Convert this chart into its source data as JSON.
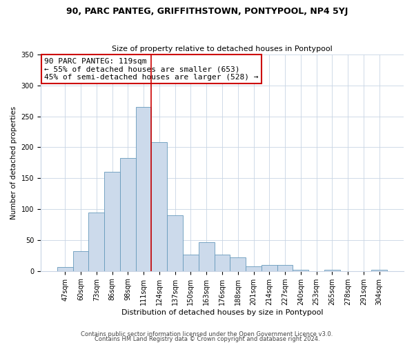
{
  "title": "90, PARC PANTEG, GRIFFITHSTOWN, PONTYPOOL, NP4 5YJ",
  "subtitle": "Size of property relative to detached houses in Pontypool",
  "xlabel": "Distribution of detached houses by size in Pontypool",
  "ylabel": "Number of detached properties",
  "bar_labels": [
    "47sqm",
    "60sqm",
    "73sqm",
    "86sqm",
    "98sqm",
    "111sqm",
    "124sqm",
    "137sqm",
    "150sqm",
    "163sqm",
    "176sqm",
    "188sqm",
    "201sqm",
    "214sqm",
    "227sqm",
    "240sqm",
    "253sqm",
    "265sqm",
    "278sqm",
    "291sqm",
    "304sqm"
  ],
  "bar_values": [
    6,
    32,
    95,
    160,
    183,
    265,
    208,
    90,
    27,
    46,
    27,
    22,
    7,
    10,
    10,
    2,
    0,
    2,
    0,
    0,
    2
  ],
  "bar_color": "#ccdaeb",
  "bar_edgecolor": "#6699bb",
  "vline_x_index": 5.5,
  "vline_color": "#cc0000",
  "annotation_line1": "90 PARC PANTEG: 119sqm",
  "annotation_line2": "← 55% of detached houses are smaller (653)",
  "annotation_line3": "45% of semi-detached houses are larger (528) →",
  "annotation_box_edgecolor": "#cc0000",
  "ylim": [
    0,
    350
  ],
  "yticks": [
    0,
    50,
    100,
    150,
    200,
    250,
    300,
    350
  ],
  "footer1": "Contains HM Land Registry data © Crown copyright and database right 2024.",
  "footer2": "Contains public sector information licensed under the Open Government Licence v3.0.",
  "bg_color": "#ffffff",
  "grid_color": "#c8d4e4",
  "title_fontsize": 9,
  "subtitle_fontsize": 8,
  "annotation_fontsize": 8,
  "xlabel_fontsize": 8,
  "ylabel_fontsize": 7.5,
  "tick_fontsize": 7,
  "footer_fontsize": 6
}
